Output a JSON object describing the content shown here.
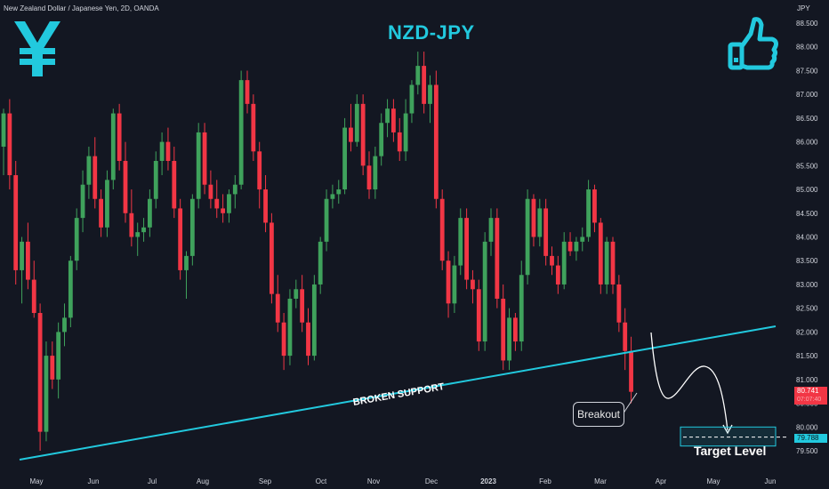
{
  "header": {
    "symbol_info": "New Zealand Dollar / Japanese Yen, 2D, OANDA",
    "title": "NZD-JPY",
    "unit": "JPY"
  },
  "icons": {
    "left": "yen-icon",
    "right": "thumbs-up-icon",
    "accent": "#22c9de"
  },
  "colors": {
    "background": "#131722",
    "up": "#26a69a",
    "up_body": "#3fa25c",
    "down": "#f23645",
    "accent": "#22c9de",
    "text": "#d1d4dc"
  },
  "annotations": {
    "support_label": "BROKEN SUPPORT",
    "breakout_label": "Breakout",
    "target_label": "Target Level"
  },
  "price_tags": {
    "current": "80.741",
    "current_sub": "07:07:40",
    "target": "79.788"
  },
  "chart_data": {
    "type": "candlestick",
    "title": "NZD-JPY",
    "ylabel": "JPY",
    "ylim": [
      79.3,
      88.8
    ],
    "y_ticks": [
      "88.500",
      "88.000",
      "87.500",
      "87.000",
      "86.500",
      "86.000",
      "85.500",
      "85.000",
      "84.500",
      "84.000",
      "83.500",
      "83.000",
      "82.500",
      "82.000",
      "81.500",
      "81.000",
      "80.500",
      "80.000",
      "79.500"
    ],
    "x_ticks": [
      "May",
      "Jun",
      "Jul",
      "Aug",
      "Sep",
      "Oct",
      "Nov",
      "Dec",
      "2023",
      "Feb",
      "Mar",
      "Apr",
      "May",
      "Jun"
    ],
    "grid": false,
    "series": [
      {
        "o": 85.9,
        "h": 86.7,
        "l": 85.3,
        "c": 86.6
      },
      {
        "o": 86.6,
        "h": 86.9,
        "l": 85.0,
        "c": 85.3
      },
      {
        "o": 85.3,
        "h": 85.6,
        "l": 83.0,
        "c": 83.3
      },
      {
        "o": 83.3,
        "h": 84.0,
        "l": 82.6,
        "c": 83.9
      },
      {
        "o": 83.9,
        "h": 84.3,
        "l": 82.9,
        "c": 83.1
      },
      {
        "o": 83.1,
        "h": 83.5,
        "l": 82.3,
        "c": 82.4
      },
      {
        "o": 82.4,
        "h": 82.6,
        "l": 79.5,
        "c": 79.9
      },
      {
        "o": 79.9,
        "h": 81.8,
        "l": 79.7,
        "c": 81.5
      },
      {
        "o": 81.5,
        "h": 81.8,
        "l": 80.8,
        "c": 81.0
      },
      {
        "o": 81.0,
        "h": 82.2,
        "l": 80.6,
        "c": 82.0
      },
      {
        "o": 82.0,
        "h": 82.6,
        "l": 81.7,
        "c": 82.3
      },
      {
        "o": 82.3,
        "h": 83.6,
        "l": 82.1,
        "c": 83.5
      },
      {
        "o": 83.5,
        "h": 84.6,
        "l": 83.3,
        "c": 84.4
      },
      {
        "o": 84.4,
        "h": 85.4,
        "l": 84.1,
        "c": 85.1
      },
      {
        "o": 85.1,
        "h": 85.9,
        "l": 84.8,
        "c": 85.7
      },
      {
        "o": 85.7,
        "h": 86.1,
        "l": 84.6,
        "c": 84.8
      },
      {
        "o": 84.8,
        "h": 85.0,
        "l": 84.0,
        "c": 84.2
      },
      {
        "o": 84.2,
        "h": 85.4,
        "l": 84.0,
        "c": 85.2
      },
      {
        "o": 85.2,
        "h": 86.7,
        "l": 85.0,
        "c": 86.6
      },
      {
        "o": 86.6,
        "h": 86.8,
        "l": 85.4,
        "c": 85.6
      },
      {
        "o": 85.6,
        "h": 86.0,
        "l": 84.3,
        "c": 84.5
      },
      {
        "o": 84.5,
        "h": 85.0,
        "l": 83.8,
        "c": 84.0
      },
      {
        "o": 84.0,
        "h": 84.3,
        "l": 83.6,
        "c": 84.1
      },
      {
        "o": 84.1,
        "h": 84.4,
        "l": 83.9,
        "c": 84.2
      },
      {
        "o": 84.2,
        "h": 85.0,
        "l": 84.0,
        "c": 84.8
      },
      {
        "o": 84.8,
        "h": 85.8,
        "l": 84.6,
        "c": 85.6
      },
      {
        "o": 85.6,
        "h": 86.2,
        "l": 85.3,
        "c": 86.0
      },
      {
        "o": 86.0,
        "h": 86.3,
        "l": 85.4,
        "c": 85.6
      },
      {
        "o": 85.6,
        "h": 85.9,
        "l": 84.4,
        "c": 84.6
      },
      {
        "o": 84.6,
        "h": 84.8,
        "l": 83.1,
        "c": 83.3
      },
      {
        "o": 83.3,
        "h": 83.7,
        "l": 82.7,
        "c": 83.6
      },
      {
        "o": 83.6,
        "h": 84.9,
        "l": 83.4,
        "c": 84.8
      },
      {
        "o": 84.8,
        "h": 86.4,
        "l": 84.6,
        "c": 86.2
      },
      {
        "o": 86.2,
        "h": 86.4,
        "l": 84.9,
        "c": 85.1
      },
      {
        "o": 85.1,
        "h": 85.4,
        "l": 84.6,
        "c": 84.8
      },
      {
        "o": 84.8,
        "h": 85.2,
        "l": 84.4,
        "c": 84.6
      },
      {
        "o": 84.6,
        "h": 84.9,
        "l": 84.3,
        "c": 84.5
      },
      {
        "o": 84.5,
        "h": 85.0,
        "l": 84.3,
        "c": 84.9
      },
      {
        "o": 84.9,
        "h": 85.3,
        "l": 84.6,
        "c": 85.1
      },
      {
        "o": 85.1,
        "h": 87.5,
        "l": 85.0,
        "c": 87.3
      },
      {
        "o": 87.3,
        "h": 87.5,
        "l": 86.6,
        "c": 86.8
      },
      {
        "o": 86.8,
        "h": 87.0,
        "l": 85.6,
        "c": 85.8
      },
      {
        "o": 85.8,
        "h": 86.0,
        "l": 84.6,
        "c": 85.0
      },
      {
        "o": 85.0,
        "h": 85.3,
        "l": 84.1,
        "c": 84.3
      },
      {
        "o": 84.3,
        "h": 84.5,
        "l": 82.6,
        "c": 82.8
      },
      {
        "o": 82.8,
        "h": 83.2,
        "l": 82.0,
        "c": 82.2
      },
      {
        "o": 82.2,
        "h": 82.4,
        "l": 81.2,
        "c": 81.5
      },
      {
        "o": 81.5,
        "h": 82.9,
        "l": 81.3,
        "c": 82.7
      },
      {
        "o": 82.7,
        "h": 83.1,
        "l": 82.5,
        "c": 82.9
      },
      {
        "o": 82.9,
        "h": 83.2,
        "l": 82.0,
        "c": 82.2
      },
      {
        "o": 82.2,
        "h": 82.5,
        "l": 81.3,
        "c": 81.5
      },
      {
        "o": 81.5,
        "h": 83.2,
        "l": 81.4,
        "c": 83.0
      },
      {
        "o": 83.0,
        "h": 84.0,
        "l": 82.8,
        "c": 83.9
      },
      {
        "o": 83.9,
        "h": 85.0,
        "l": 83.7,
        "c": 84.8
      },
      {
        "o": 84.8,
        "h": 85.1,
        "l": 84.6,
        "c": 84.9
      },
      {
        "o": 84.9,
        "h": 85.2,
        "l": 84.7,
        "c": 85.0
      },
      {
        "o": 85.0,
        "h": 86.5,
        "l": 84.9,
        "c": 86.3
      },
      {
        "o": 86.3,
        "h": 86.8,
        "l": 85.8,
        "c": 86.0
      },
      {
        "o": 86.0,
        "h": 87.0,
        "l": 85.9,
        "c": 86.8
      },
      {
        "o": 86.8,
        "h": 87.0,
        "l": 85.3,
        "c": 85.5
      },
      {
        "o": 85.5,
        "h": 85.8,
        "l": 84.8,
        "c": 85.0
      },
      {
        "o": 85.0,
        "h": 85.9,
        "l": 84.8,
        "c": 85.7
      },
      {
        "o": 85.7,
        "h": 86.6,
        "l": 85.5,
        "c": 86.4
      },
      {
        "o": 86.4,
        "h": 86.9,
        "l": 86.1,
        "c": 86.7
      },
      {
        "o": 86.7,
        "h": 86.9,
        "l": 86.0,
        "c": 86.2
      },
      {
        "o": 86.2,
        "h": 86.5,
        "l": 85.6,
        "c": 85.8
      },
      {
        "o": 85.8,
        "h": 86.9,
        "l": 85.6,
        "c": 86.6
      },
      {
        "o": 86.6,
        "h": 87.3,
        "l": 86.4,
        "c": 87.2
      },
      {
        "o": 87.2,
        "h": 87.9,
        "l": 87.0,
        "c": 87.6
      },
      {
        "o": 87.6,
        "h": 87.9,
        "l": 86.6,
        "c": 86.8
      },
      {
        "o": 86.8,
        "h": 87.4,
        "l": 86.4,
        "c": 87.2
      },
      {
        "o": 87.2,
        "h": 87.5,
        "l": 84.6,
        "c": 84.8
      },
      {
        "o": 84.8,
        "h": 85.0,
        "l": 83.3,
        "c": 83.5
      },
      {
        "o": 83.5,
        "h": 83.7,
        "l": 82.3,
        "c": 82.6
      },
      {
        "o": 82.6,
        "h": 83.6,
        "l": 82.4,
        "c": 83.4
      },
      {
        "o": 83.4,
        "h": 84.6,
        "l": 83.2,
        "c": 84.4
      },
      {
        "o": 84.4,
        "h": 84.6,
        "l": 82.9,
        "c": 83.1
      },
      {
        "o": 83.1,
        "h": 83.3,
        "l": 82.6,
        "c": 82.9
      },
      {
        "o": 82.9,
        "h": 83.1,
        "l": 81.6,
        "c": 81.8
      },
      {
        "o": 81.8,
        "h": 84.1,
        "l": 81.6,
        "c": 83.9
      },
      {
        "o": 83.9,
        "h": 84.6,
        "l": 83.6,
        "c": 84.4
      },
      {
        "o": 84.4,
        "h": 84.6,
        "l": 82.5,
        "c": 82.7
      },
      {
        "o": 82.7,
        "h": 83.0,
        "l": 81.2,
        "c": 81.4
      },
      {
        "o": 81.4,
        "h": 82.5,
        "l": 81.2,
        "c": 82.3
      },
      {
        "o": 82.3,
        "h": 82.4,
        "l": 81.6,
        "c": 81.8
      },
      {
        "o": 81.8,
        "h": 83.5,
        "l": 81.6,
        "c": 83.2
      },
      {
        "o": 83.2,
        "h": 85.0,
        "l": 83.0,
        "c": 84.8
      },
      {
        "o": 84.8,
        "h": 84.9,
        "l": 83.8,
        "c": 84.0
      },
      {
        "o": 84.0,
        "h": 84.8,
        "l": 83.8,
        "c": 84.6
      },
      {
        "o": 84.6,
        "h": 84.8,
        "l": 83.4,
        "c": 83.6
      },
      {
        "o": 83.6,
        "h": 83.8,
        "l": 83.2,
        "c": 83.4
      },
      {
        "o": 83.4,
        "h": 83.6,
        "l": 82.8,
        "c": 83.0
      },
      {
        "o": 83.0,
        "h": 84.1,
        "l": 82.9,
        "c": 83.9
      },
      {
        "o": 83.9,
        "h": 84.1,
        "l": 83.6,
        "c": 83.7
      },
      {
        "o": 83.7,
        "h": 84.0,
        "l": 83.5,
        "c": 83.9
      },
      {
        "o": 83.9,
        "h": 84.2,
        "l": 83.7,
        "c": 84.0
      },
      {
        "o": 84.0,
        "h": 85.2,
        "l": 83.9,
        "c": 85.0
      },
      {
        "o": 85.0,
        "h": 85.1,
        "l": 84.1,
        "c": 84.3
      },
      {
        "o": 84.3,
        "h": 84.4,
        "l": 82.8,
        "c": 83.0
      },
      {
        "o": 83.0,
        "h": 84.0,
        "l": 82.8,
        "c": 83.9
      },
      {
        "o": 83.9,
        "h": 84.0,
        "l": 82.8,
        "c": 83.0
      },
      {
        "o": 83.0,
        "h": 83.2,
        "l": 82.0,
        "c": 82.2
      },
      {
        "o": 82.2,
        "h": 82.5,
        "l": 81.2,
        "c": 81.6
      },
      {
        "o": 81.6,
        "h": 81.9,
        "l": 80.5,
        "c": 80.741
      }
    ],
    "support_line": {
      "label": "BROKEN SUPPORT",
      "x": [
        0,
        160
      ],
      "y": [
        79.5,
        82.1
      ]
    },
    "projection": {
      "label": "Target Level",
      "target": 79.788
    }
  }
}
